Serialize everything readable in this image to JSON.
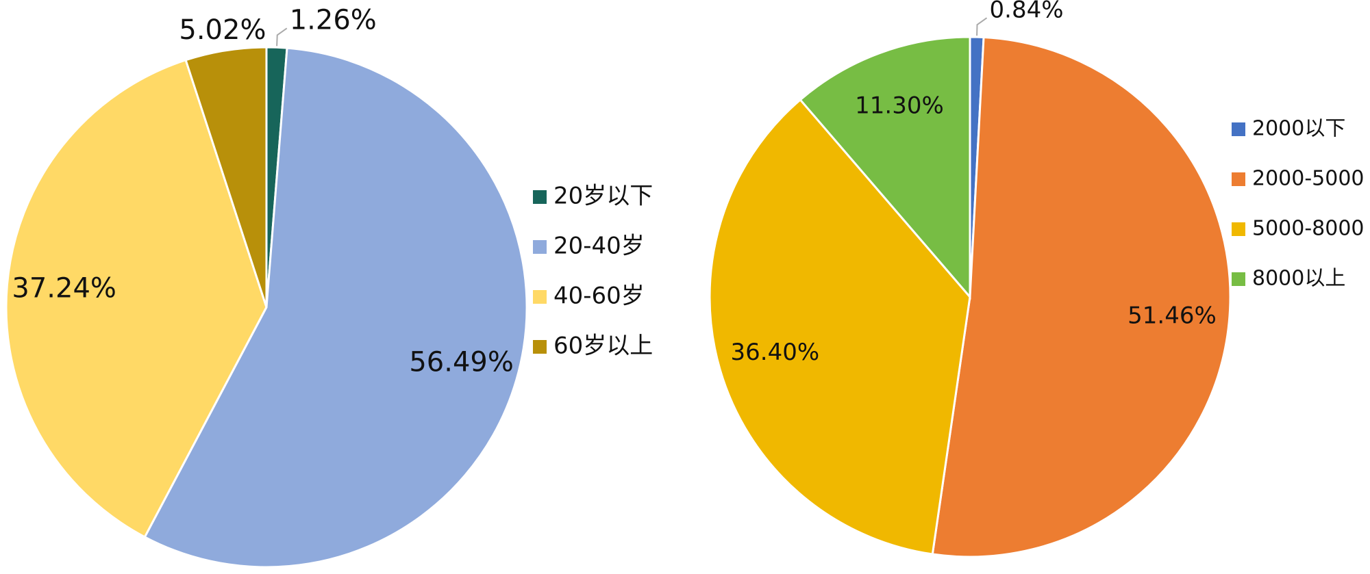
{
  "chart_data": [
    {
      "type": "pie",
      "categories": [
        "20岁以下",
        "20-40岁",
        "40-60岁",
        "60岁以上"
      ],
      "values": [
        1.26,
        56.49,
        37.24,
        5.02
      ],
      "value_labels": [
        "1.26%",
        "56.49%",
        "37.24%",
        "5.02%"
      ],
      "colors": [
        "#17655a",
        "#8faadc",
        "#ffd966",
        "#b8900a"
      ],
      "legend": "right"
    },
    {
      "type": "pie",
      "categories": [
        "2000以下",
        "2000-5000",
        "5000-8000",
        "8000以上"
      ],
      "values": [
        0.84,
        51.46,
        36.4,
        11.3
      ],
      "value_labels": [
        "0.84%",
        "51.46%",
        "36.40%",
        "11.30%"
      ],
      "colors": [
        "#4472c4",
        "#ed7d31",
        "#f0b800",
        "#77bd44"
      ],
      "legend": "right"
    }
  ]
}
